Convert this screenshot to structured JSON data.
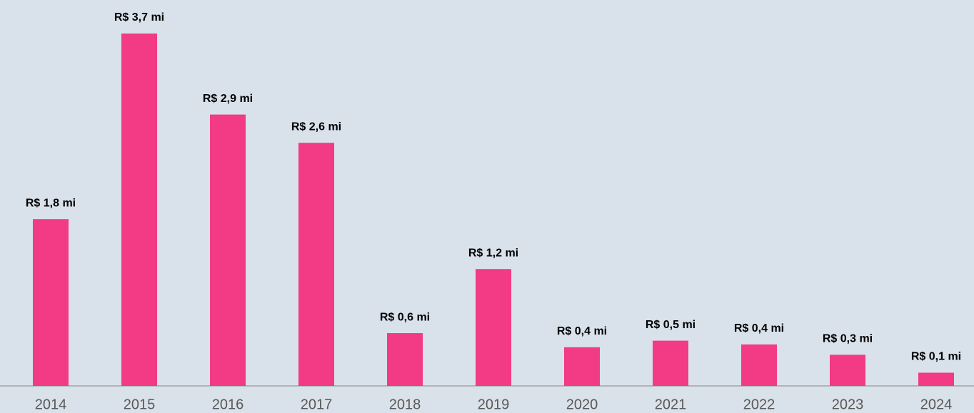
{
  "chart_data": {
    "type": "bar",
    "categories": [
      "2014",
      "2015",
      "2016",
      "2017",
      "2018",
      "2019",
      "2020",
      "2021",
      "2022",
      "2023",
      "2024"
    ],
    "values": [
      1.77,
      3.74,
      2.88,
      2.58,
      0.56,
      1.24,
      0.41,
      0.48,
      0.44,
      0.33,
      0.14
    ],
    "value_labels": [
      "R$ 1,8 mi",
      "R$ 3,7 mi",
      "R$ 2,9 mi",
      "R$ 2,6 mi",
      "R$ 0,6 mi",
      "R$ 1,2 mi",
      "R$ 0,4 mi",
      "R$ 0,5 mi",
      "R$ 0,4 mi",
      "R$ 0,3 mi",
      "R$ 0,1 mi"
    ],
    "color": "#f23a85"
  }
}
